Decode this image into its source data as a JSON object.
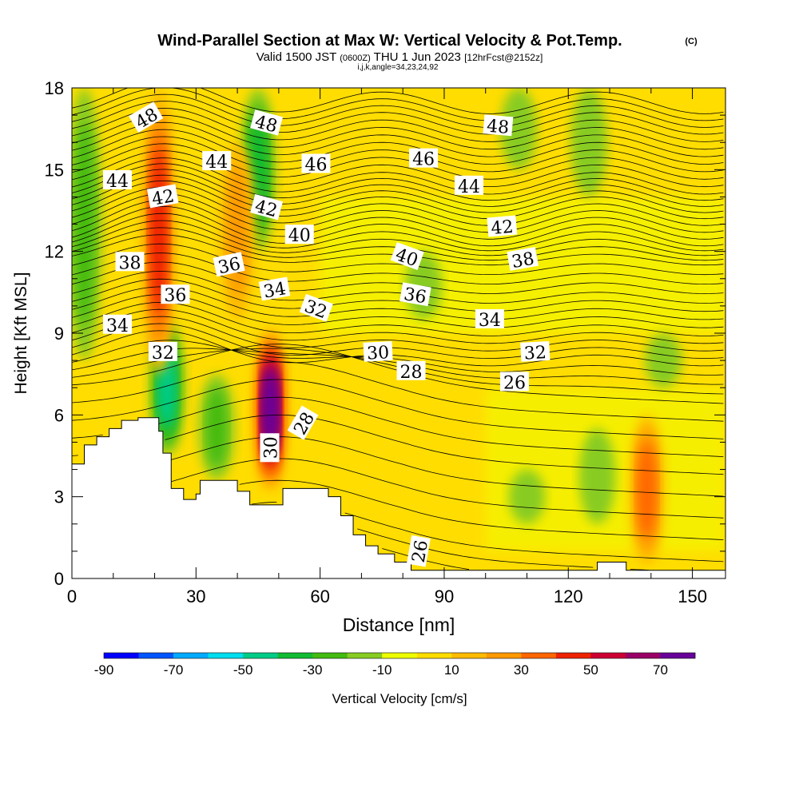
{
  "header": {
    "title": "Wind-Parallel Section at Max W: Vertical Velocity & Pot.Temp.",
    "copyright": "(C)",
    "valid_prefix": "Valid 1500 JST",
    "valid_utc": "(0600Z)",
    "valid_date": "THU 1 Jun 2023",
    "forecast": "[12hrFcst@2152z]",
    "indices": "i,j,k,angle=34,23,24,92"
  },
  "chart_data": {
    "type": "heatmap",
    "xlabel": "Distance [nm]",
    "ylabel": "Height [Kft MSL]",
    "xlim": [
      0,
      158
    ],
    "ylim": [
      0,
      18
    ],
    "x_ticks": [
      0,
      30,
      60,
      90,
      120,
      150
    ],
    "x_tick_labels": [
      "0",
      "30",
      "60",
      "90",
      "120",
      "150"
    ],
    "y_ticks": [
      0,
      3,
      6,
      9,
      12,
      15,
      18
    ],
    "y_tick_labels": [
      "0",
      "3",
      "6",
      "9",
      "12",
      "15",
      "18"
    ],
    "colorbar": {
      "label": "Vertical Velocity [cm/s]",
      "bounds": [
        -90,
        -80,
        -70,
        -60,
        -50,
        -40,
        -30,
        -20,
        -10,
        0,
        10,
        20,
        30,
        40,
        50,
        60,
        70,
        80
      ],
      "tick_labels": [
        "-90",
        "-70",
        "-50",
        "-30",
        "-10",
        "10",
        "30",
        "50",
        "70"
      ],
      "colors": [
        "#0000ff",
        "#0055ff",
        "#00aaff",
        "#00ddee",
        "#00cc88",
        "#11bb33",
        "#44bb11",
        "#88cc22",
        "#eeff00",
        "#ffdd00",
        "#ffbb00",
        "#ff9900",
        "#ff6600",
        "#ee2200",
        "#cc0033",
        "#990066",
        "#660099"
      ]
    },
    "terrain": [
      [
        0,
        4.2
      ],
      [
        3,
        4.9
      ],
      [
        6,
        5.2
      ],
      [
        9,
        5.5
      ],
      [
        12,
        5.8
      ],
      [
        16,
        5.9
      ],
      [
        21,
        5.4
      ],
      [
        22,
        4.6
      ],
      [
        24,
        3.3
      ],
      [
        27,
        2.9
      ],
      [
        30,
        3.1
      ],
      [
        31,
        3.6
      ],
      [
        37,
        3.6
      ],
      [
        40,
        3.2
      ],
      [
        43,
        2.7
      ],
      [
        49,
        2.7
      ],
      [
        51,
        3.3
      ],
      [
        59,
        3.3
      ],
      [
        62,
        3.0
      ],
      [
        65,
        2.3
      ],
      [
        68,
        1.6
      ],
      [
        71,
        1.2
      ],
      [
        74,
        0.9
      ],
      [
        78,
        0.6
      ],
      [
        82,
        0.3
      ],
      [
        88,
        0.3
      ],
      [
        124,
        0.3
      ],
      [
        127,
        0.6
      ],
      [
        132,
        0.6
      ],
      [
        134,
        0.3
      ],
      [
        158,
        0.3
      ]
    ],
    "updraft_zones": [
      {
        "x": 48,
        "zmin": 3.2,
        "zmax": 9.2,
        "peak": 75
      },
      {
        "x": 21,
        "zmin": 7.5,
        "zmax": 18,
        "peak": 48
      },
      {
        "x": 40,
        "zmin": 9.5,
        "zmax": 16,
        "peak": 28
      },
      {
        "x": 139,
        "zmin": 0.5,
        "zmax": 6,
        "peak": 40
      }
    ],
    "downdraft_zones": [
      {
        "x": 23,
        "zmin": 4.5,
        "zmax": 9.5,
        "peak": -45
      },
      {
        "x": 35,
        "zmin": 3.6,
        "zmax": 7.5,
        "peak": -30
      },
      {
        "x": 45,
        "zmin": 12,
        "zmax": 18,
        "peak": -35
      },
      {
        "x": 3,
        "zmin": 8,
        "zmax": 18,
        "peak": -25
      },
      {
        "x": 85,
        "zmin": 9.5,
        "zmax": 12,
        "peak": -18
      },
      {
        "x": 108,
        "zmin": 15,
        "zmax": 18,
        "peak": -15
      },
      {
        "x": 125,
        "zmin": 14,
        "zmax": 18,
        "peak": -12
      },
      {
        "x": 143,
        "zmin": 7,
        "zmax": 9,
        "peak": -15
      },
      {
        "x": 127,
        "zmin": 2,
        "zmax": 5.5,
        "peak": -15
      },
      {
        "x": 110,
        "zmin": 2,
        "zmax": 4,
        "peak": -12
      }
    ],
    "theta_contours": [
      {
        "value": 26,
        "labels": [
          "26",
          "26"
        ]
      },
      {
        "value": 28,
        "labels": [
          "28",
          "28"
        ]
      },
      {
        "value": 30,
        "labels": [
          "30",
          "30"
        ]
      },
      {
        "value": 32,
        "labels": [
          "32",
          "32",
          "32"
        ]
      },
      {
        "value": 34,
        "labels": [
          "34",
          "34",
          "34"
        ]
      },
      {
        "value": 36,
        "labels": [
          "36",
          "36",
          "36"
        ]
      },
      {
        "value": 38,
        "labels": [
          "38",
          "38"
        ]
      },
      {
        "value": 40,
        "labels": [
          "40",
          "40"
        ]
      },
      {
        "value": 42,
        "labels": [
          "42",
          "42",
          "42"
        ]
      },
      {
        "value": 44,
        "labels": [
          "44",
          "44",
          "44"
        ]
      },
      {
        "value": 46,
        "labels": [
          "46",
          "46"
        ]
      },
      {
        "value": 48,
        "labels": [
          "48",
          "48",
          "48"
        ]
      }
    ]
  }
}
